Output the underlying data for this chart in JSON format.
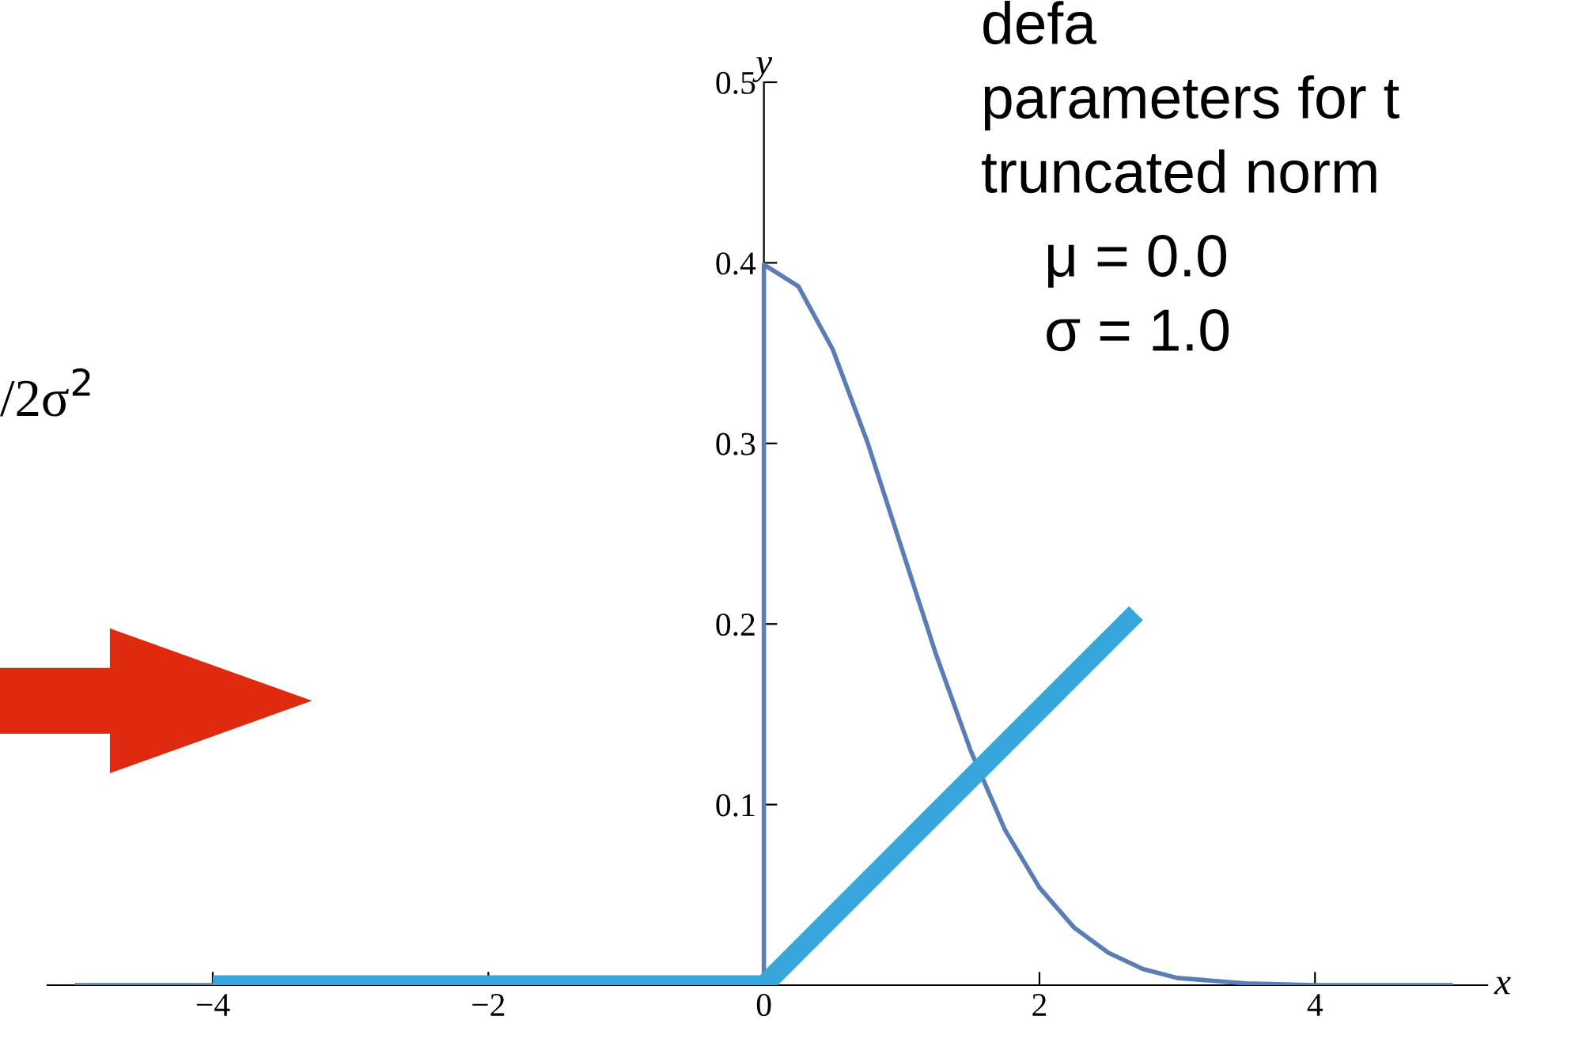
{
  "chart_data": {
    "type": "line",
    "xlabel": "x",
    "ylabel": "y",
    "annotations": [
      "defa",
      "parameters for t",
      "truncated norm",
      "μ = 0.0",
      "σ = 1.0",
      "/2σ$^{2}$"
    ],
    "series": [
      {
        "color": "#5b7db5",
        "x": [
          -5,
          0,
          0,
          0.25,
          0.5,
          0.75,
          1,
          1.25,
          1.5,
          1.75,
          2,
          2.25,
          2.5,
          2.75,
          3,
          3.5,
          4,
          5
        ],
        "values": [
          0,
          0,
          0.399,
          0.387,
          0.352,
          0.301,
          0.242,
          0.183,
          0.13,
          0.086,
          0.054,
          0.032,
          0.018,
          0.009,
          0.004,
          0.001,
          0,
          0
        ]
      },
      {
        "color": "#36a6db",
        "x": [
          -4,
          0,
          2.7
        ],
        "values": [
          0,
          0,
          0.206
        ]
      }
    ],
    "xlim": [
      -5.2,
      5.25
    ],
    "ylim": [
      0,
      0.5
    ],
    "xticks": [
      {
        "value": -4,
        "label": "−4"
      },
      {
        "value": -2,
        "label": "−2"
      },
      0,
      2,
      4
    ],
    "yticks": [
      0.1,
      0.2,
      0.3,
      0.4,
      0.5
    ],
    "grid": false,
    "legend": false,
    "marker": "none",
    "line_style": "solid"
  }
}
